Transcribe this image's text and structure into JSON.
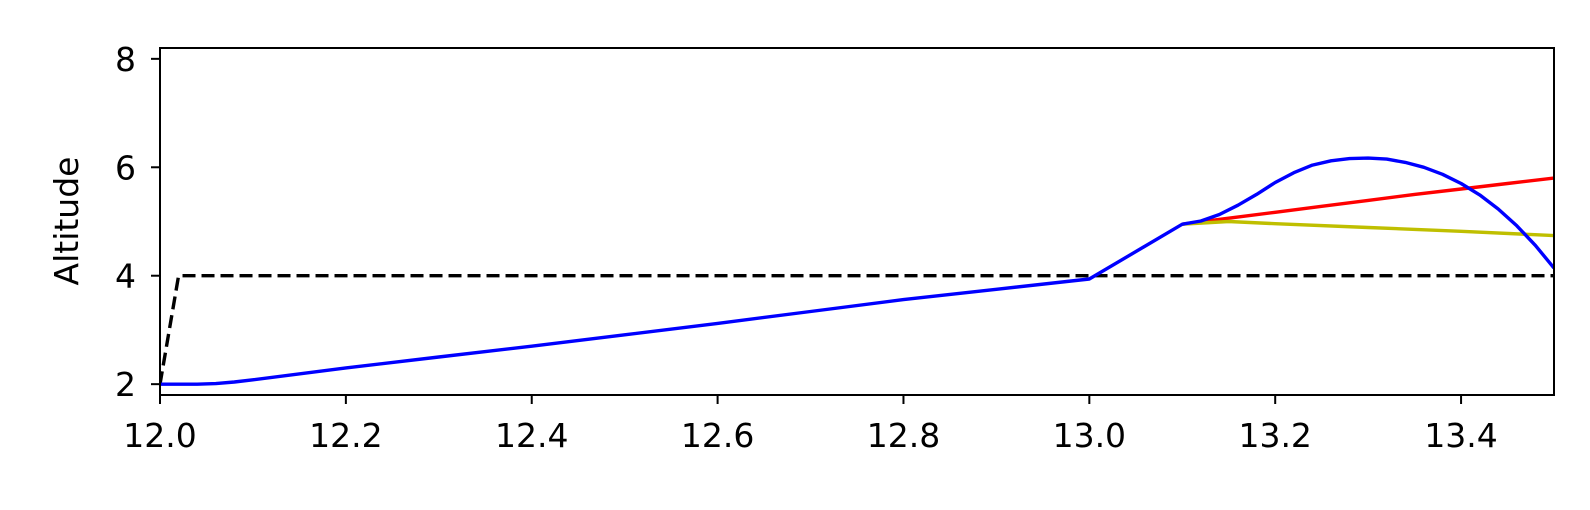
{
  "chart_data": {
    "type": "line",
    "title": "",
    "xlabel": "",
    "ylabel": "Altitude",
    "xlim": [
      12.0,
      13.5
    ],
    "ylim": [
      1.8,
      8.2
    ],
    "xticks": [
      12.0,
      12.2,
      12.4,
      12.6,
      12.8,
      13.0,
      13.2,
      13.4
    ],
    "xtick_labels": [
      "12.0",
      "12.2",
      "12.4",
      "12.6",
      "12.8",
      "13.0",
      "13.2",
      "13.4"
    ],
    "yticks": [
      2,
      4,
      6,
      8
    ],
    "ytick_labels": [
      "2",
      "4",
      "6",
      "8"
    ],
    "grid": false,
    "legend": "none",
    "series": [
      {
        "color": "#ff0000",
        "style": "solid",
        "x": [
          13.1,
          13.15,
          13.2,
          13.25,
          13.3,
          13.35,
          13.4,
          13.45,
          13.5
        ],
        "y": [
          4.95,
          5.06,
          5.17,
          5.28,
          5.39,
          5.5,
          5.6,
          5.7,
          5.8
        ]
      },
      {
        "color": "#bfbf00",
        "style": "solid",
        "x": [
          13.1,
          13.15,
          13.2,
          13.3,
          13.4,
          13.5
        ],
        "y": [
          4.95,
          5.0,
          4.96,
          4.89,
          4.82,
          4.74
        ]
      },
      {
        "color": "#000000",
        "style": "dashed",
        "x": [
          12.0,
          12.02,
          12.05,
          12.2,
          12.4,
          12.6,
          12.8,
          13.0,
          13.2,
          13.4,
          13.5
        ],
        "y": [
          2.0,
          4.0,
          4.0,
          4.0,
          4.0,
          4.0,
          4.0,
          4.0,
          4.0,
          4.0,
          4.0
        ]
      },
      {
        "color": "#0000ff",
        "style": "solid",
        "x": [
          12.0,
          12.02,
          12.04,
          12.06,
          12.08,
          12.1,
          12.2,
          12.3,
          12.4,
          12.5,
          12.6,
          12.7,
          12.8,
          12.9,
          13.0,
          13.1,
          13.12,
          13.14,
          13.16,
          13.18,
          13.2,
          13.22,
          13.24,
          13.26,
          13.28,
          13.3,
          13.32,
          13.34,
          13.36,
          13.38,
          13.4,
          13.42,
          13.44,
          13.46,
          13.48,
          13.5
        ],
        "y": [
          2.0,
          2.0,
          2.0,
          2.01,
          2.04,
          2.08,
          2.3,
          2.5,
          2.7,
          2.91,
          3.12,
          3.34,
          3.56,
          3.75,
          3.94,
          4.95,
          5.01,
          5.13,
          5.3,
          5.5,
          5.72,
          5.9,
          6.04,
          6.12,
          6.16,
          6.17,
          6.15,
          6.09,
          6.0,
          5.87,
          5.7,
          5.49,
          5.23,
          4.92,
          4.56,
          4.14
        ]
      }
    ]
  }
}
